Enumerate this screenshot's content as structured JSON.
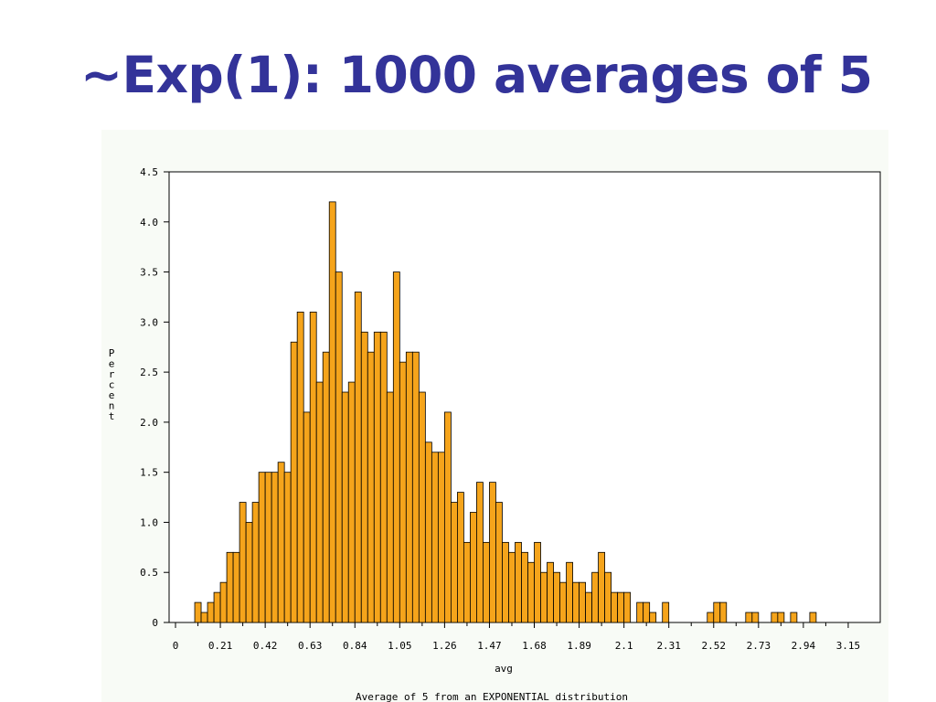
{
  "page": {
    "title": "~Exp(1): 1000 averages of 5"
  },
  "chart_data": {
    "type": "bar",
    "title": "",
    "xlabel": "avg",
    "ylabel": "Percent",
    "footnote": "Average of 5 from an EXPONENTIAL distribution",
    "bin_width": 0.03,
    "first_bin_start": 0.09,
    "x_tick_values": [
      0,
      0.21,
      0.42,
      0.63,
      0.84,
      1.05,
      1.26,
      1.47,
      1.68,
      1.89,
      2.1,
      2.31,
      2.52,
      2.73,
      2.94,
      3.15
    ],
    "x_tick_labels": [
      "0",
      "0.21",
      "0.42",
      "0.63",
      "0.84",
      "1.05",
      "1.26",
      "1.47",
      "1.68",
      "1.89",
      "2.1",
      "2.31",
      "2.52",
      "2.73",
      "2.94",
      "3.15"
    ],
    "y_ticks": [
      "0",
      "0.5",
      "1.0",
      "1.5",
      "2.0",
      "2.5",
      "3.0",
      "3.5",
      "4.0",
      "4.5"
    ],
    "xlim": [
      -0.03,
      3.3
    ],
    "ylim": [
      0,
      4.5
    ],
    "grid": false,
    "bar_color": "#f5a41b",
    "bar_edge_color": "#000000",
    "values": [
      0.2,
      0.1,
      0.2,
      0.3,
      0.4,
      0.7,
      0.7,
      1.2,
      1.0,
      1.2,
      1.5,
      1.5,
      1.5,
      1.6,
      1.5,
      2.8,
      3.1,
      2.1,
      3.1,
      2.4,
      2.7,
      4.2,
      3.5,
      2.3,
      2.4,
      3.3,
      2.9,
      2.7,
      2.9,
      2.9,
      2.3,
      3.5,
      2.6,
      2.7,
      2.7,
      2.3,
      1.8,
      1.7,
      1.7,
      2.1,
      1.2,
      1.3,
      0.8,
      1.1,
      1.4,
      0.8,
      1.4,
      1.2,
      0.8,
      0.7,
      0.8,
      0.7,
      0.6,
      0.8,
      0.5,
      0.6,
      0.5,
      0.4,
      0.6,
      0.4,
      0.4,
      0.3,
      0.5,
      0.7,
      0.5,
      0.3,
      0.3,
      0.3,
      0,
      0.2,
      0.2,
      0.1,
      0,
      0.2,
      0,
      0,
      0,
      0,
      0,
      0,
      0.1,
      0.2,
      0.2,
      0,
      0,
      0,
      0.1,
      0.1,
      0,
      0,
      0.1,
      0.1,
      0,
      0.1,
      0,
      0,
      0.1,
      0,
      0,
      0,
      0,
      0,
      0,
      0,
      0,
      0,
      0,
      0,
      0,
      0,
      0,
      0,
      0,
      0,
      0,
      0.1
    ]
  }
}
